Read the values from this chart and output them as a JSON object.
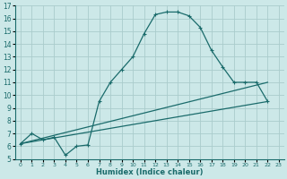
{
  "xlabel": "Humidex (Indice chaleur)",
  "ylabel": "",
  "bg_color": "#cce8e8",
  "grid_color": "#aacccc",
  "line_color": "#1a6b6b",
  "xlim": [
    -0.5,
    23.5
  ],
  "ylim": [
    5,
    17
  ],
  "xticks": [
    0,
    1,
    2,
    3,
    4,
    5,
    6,
    7,
    8,
    9,
    10,
    11,
    12,
    13,
    14,
    15,
    16,
    17,
    18,
    19,
    20,
    21,
    22,
    23
  ],
  "yticks": [
    5,
    6,
    7,
    8,
    9,
    10,
    11,
    12,
    13,
    14,
    15,
    16,
    17
  ],
  "curve1_x": [
    0,
    1,
    2,
    3,
    4,
    5,
    6,
    7,
    8,
    9,
    10,
    11,
    12,
    13,
    14,
    15,
    16,
    17,
    18,
    19,
    20,
    21,
    22
  ],
  "curve1_y": [
    6.2,
    7.0,
    6.5,
    6.7,
    5.3,
    6.0,
    6.1,
    9.5,
    11.0,
    12.0,
    13.0,
    14.8,
    16.3,
    16.5,
    16.5,
    16.2,
    15.3,
    13.5,
    12.2,
    11.0,
    11.0,
    11.0,
    9.5
  ],
  "curve2_x": [
    0,
    22
  ],
  "curve2_y": [
    6.2,
    11.0
  ],
  "curve3_x": [
    0,
    22
  ],
  "curve3_y": [
    6.2,
    9.5
  ]
}
